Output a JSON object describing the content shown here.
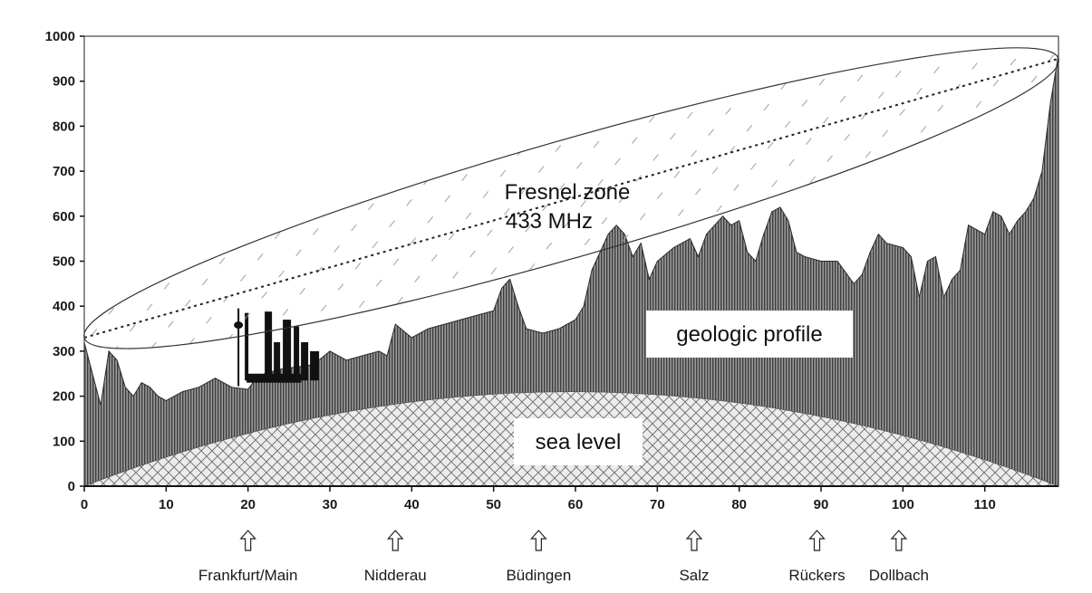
{
  "chart_data": {
    "type": "area",
    "xlim": [
      0,
      119
    ],
    "ylim": [
      0,
      1000
    ],
    "x_ticks": [
      0,
      10,
      20,
      30,
      40,
      50,
      60,
      70,
      80,
      90,
      100,
      110
    ],
    "y_ticks": [
      0,
      100,
      200,
      300,
      400,
      500,
      600,
      700,
      800,
      900,
      1000
    ],
    "grid": false,
    "annotations": {
      "fresnel_title": "Fresnel zone",
      "fresnel_freq": "433 MHz",
      "profile_label": "geologic profile",
      "sea_label": "sea level"
    },
    "series": [
      {
        "kind": "geologic_profile",
        "x": [
          0,
          1,
          2,
          3,
          4,
          5,
          6,
          7,
          8,
          9,
          10,
          12,
          14,
          16,
          18,
          20,
          21,
          22,
          24,
          26,
          28,
          30,
          32,
          34,
          36,
          37,
          38,
          40,
          42,
          44,
          46,
          48,
          50,
          51,
          52,
          53,
          54,
          56,
          58,
          60,
          61,
          62,
          63,
          64,
          65,
          66,
          67,
          68,
          69,
          70,
          72,
          74,
          75,
          76,
          78,
          79,
          80,
          81,
          82,
          83,
          84,
          85,
          86,
          87,
          88,
          90,
          92,
          94,
          95,
          96,
          97,
          98,
          100,
          101,
          102,
          103,
          104,
          105,
          106,
          107,
          108,
          110,
          111,
          112,
          113,
          114,
          115,
          116,
          117,
          118,
          119
        ],
        "y": [
          320,
          250,
          180,
          300,
          280,
          220,
          200,
          230,
          220,
          200,
          190,
          210,
          220,
          240,
          220,
          215,
          240,
          250,
          260,
          265,
          270,
          300,
          280,
          290,
          300,
          290,
          360,
          330,
          350,
          360,
          370,
          380,
          390,
          440,
          460,
          400,
          350,
          340,
          350,
          370,
          400,
          480,
          520,
          560,
          580,
          560,
          510,
          540,
          460,
          500,
          530,
          550,
          510,
          560,
          600,
          580,
          590,
          520,
          500,
          560,
          610,
          620,
          590,
          520,
          510,
          500,
          500,
          450,
          470,
          520,
          560,
          540,
          530,
          510,
          420,
          500,
          510,
          420,
          460,
          480,
          580,
          560,
          610,
          600,
          560,
          590,
          610,
          640,
          700,
          850,
          960
        ]
      },
      {
        "kind": "earth_bulge",
        "x": [
          0,
          59.5,
          119
        ],
        "y": [
          0,
          210,
          0
        ]
      },
      {
        "kind": "line_of_sight",
        "x": [
          0,
          119
        ],
        "y": [
          330,
          950
        ]
      },
      {
        "kind": "fresnel_zone",
        "x": [
          0,
          119
        ],
        "y": [
          330,
          950
        ],
        "half_width": 130
      },
      {
        "kind": "city_silhouette",
        "x_range": [
          18.5,
          26.5
        ],
        "y_top": 390
      }
    ],
    "locations": [
      {
        "name": "Frankfurt/Main",
        "x": 20
      },
      {
        "name": "Nidderau",
        "x": 38
      },
      {
        "name": "Büdingen",
        "x": 55.5
      },
      {
        "name": "Salz",
        "x": 74.5
      },
      {
        "name": "Rückers",
        "x": 89.5
      },
      {
        "name": "Dollbach",
        "x": 99.5
      }
    ]
  }
}
